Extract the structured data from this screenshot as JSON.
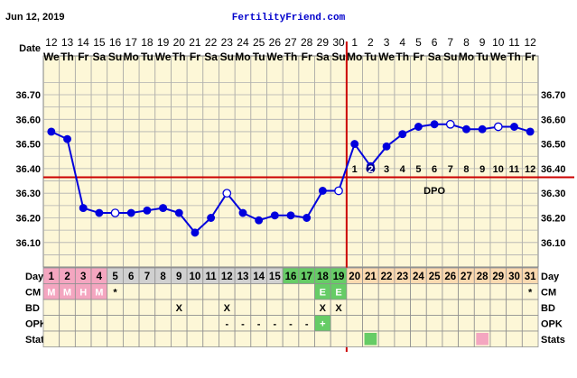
{
  "header": {
    "date": "Jun 12, 2019",
    "site": "FertilityFriend.com"
  },
  "labels": {
    "date": "Date",
    "day": "Day",
    "cm": "CM",
    "bd": "BD",
    "opk": "OPK",
    "stats": "Stats",
    "dpo": "DPO"
  },
  "colors": {
    "grid_bg": "#fdf7d7",
    "line": "#0000dd",
    "coverline": "#cc0000",
    "ovulation": "#cc0000",
    "menstrual": "#f4a6c0",
    "fertile": "#66cc66",
    "luteal": "#fbd9b0",
    "pre_cycle": "#d0d0d0",
    "stats_green": "#66cc66",
    "stats_pink": "#f4a6c0"
  },
  "chart_data": {
    "type": "line",
    "y_ticks": [
      "36.70",
      "36.60",
      "36.50",
      "36.40",
      "36.30",
      "36.20",
      "36.10"
    ],
    "ylim": [
      36.0,
      36.75
    ],
    "coverline": 36.365,
    "ovulation_day": 19,
    "dates": [
      "12",
      "13",
      "14",
      "15",
      "16",
      "17",
      "18",
      "19",
      "20",
      "21",
      "22",
      "23",
      "24",
      "25",
      "26",
      "27",
      "28",
      "29",
      "30",
      "1",
      "2",
      "3",
      "4",
      "5",
      "6",
      "7",
      "8",
      "9",
      "10",
      "11",
      "12"
    ],
    "weekdays": [
      "We",
      "Th",
      "Fr",
      "Sa",
      "Su",
      "Mo",
      "Tu",
      "We",
      "Th",
      "Fr",
      "Sa",
      "Su",
      "Mo",
      "Tu",
      "We",
      "Th",
      "Fr",
      "Sa",
      "Su",
      "Mo",
      "Tu",
      "We",
      "Th",
      "Fr",
      "Sa",
      "Su",
      "Mo",
      "Tu",
      "We",
      "Th",
      "Fr"
    ],
    "days": [
      "1",
      "2",
      "3",
      "4",
      "5",
      "6",
      "7",
      "8",
      "9",
      "10",
      "11",
      "12",
      "13",
      "14",
      "15",
      "16",
      "17",
      "18",
      "19",
      "20",
      "21",
      "22",
      "23",
      "24",
      "25",
      "26",
      "27",
      "28",
      "29",
      "30",
      "31"
    ],
    "temps": [
      36.55,
      36.52,
      36.24,
      36.22,
      36.22,
      36.22,
      36.23,
      36.24,
      36.22,
      36.14,
      36.2,
      36.3,
      36.22,
      36.19,
      36.21,
      36.21,
      36.2,
      36.31,
      36.31,
      36.5,
      36.41,
      36.49,
      36.54,
      36.57,
      36.58,
      36.58,
      36.56,
      36.56,
      36.57,
      36.57,
      36.55
    ],
    "open_markers": [
      5,
      12,
      19,
      26,
      29
    ],
    "dpo": [
      "1",
      "2",
      "3",
      "4",
      "5",
      "6",
      "7",
      "8",
      "9",
      "10",
      "11",
      "12"
    ],
    "dpo_filled": [
      2
    ],
    "cm": [
      "M",
      "M",
      "H",
      "M",
      "*",
      "",
      "",
      "",
      "",
      "",
      "",
      "",
      "",
      "",
      "",
      "",
      "",
      "E",
      "E",
      "",
      "",
      "",
      "",
      "",
      "",
      "",
      "",
      "",
      "",
      "",
      "*"
    ],
    "bd": [
      "",
      "",
      "",
      "",
      "",
      "",
      "",
      "",
      "X",
      "",
      "",
      "X",
      "",
      "",
      "",
      "",
      "",
      "X",
      "X",
      "",
      "",
      "",
      "",
      "",
      "",
      "",
      "",
      "",
      "",
      "",
      ""
    ],
    "opk": [
      "",
      "",
      "",
      "",
      "",
      "",
      "",
      "",
      "",
      "",
      "",
      "-",
      "-",
      "-",
      "-",
      "-",
      "-",
      "+",
      "",
      "",
      "",
      "",
      "",
      "",
      "",
      "",
      "",
      "",
      "",
      "",
      ""
    ],
    "stats_marks": {
      "21": "green",
      "28": "pink"
    }
  }
}
